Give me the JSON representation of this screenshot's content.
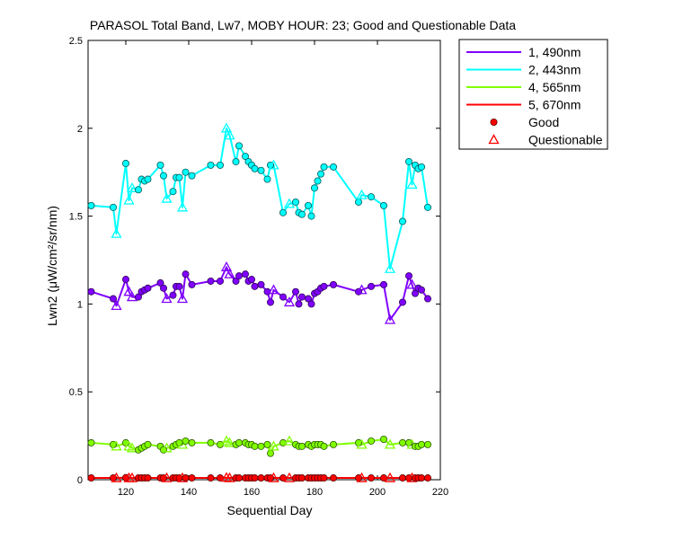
{
  "chart_data": {
    "type": "line",
    "title": "PARASOL Total Band, Lw7, MOBY HOUR: 23;  Good and Questionable Data",
    "xlabel": "Sequential Day",
    "ylabel": "Lwn2 (μW/cm²/sr/nm)",
    "xlim": [
      108,
      220
    ],
    "ylim": [
      0,
      2.5
    ],
    "xticks": [
      120,
      140,
      160,
      180,
      200,
      220
    ],
    "yticks": [
      0,
      0.5,
      1,
      1.5,
      2,
      2.5
    ],
    "ytick_labels": [
      "0",
      "0.5",
      "1",
      "1.5",
      "2",
      "2.5"
    ],
    "grid": false,
    "legend_position": "outside-top-right",
    "x": [
      109,
      116,
      117,
      120,
      121,
      122,
      124,
      125,
      126,
      127,
      131,
      132,
      133,
      135,
      136,
      137,
      138,
      139,
      141,
      147,
      150,
      152,
      153,
      155,
      156,
      158,
      159,
      160,
      161,
      163,
      165,
      166,
      167,
      170,
      172,
      174,
      175,
      176,
      178,
      179,
      180,
      181,
      182,
      183,
      186,
      194,
      195,
      198,
      202,
      204,
      208,
      210,
      211,
      212,
      213,
      214,
      216
    ],
    "series": [
      {
        "name": "1, 490nm",
        "color": "#8000FF",
        "values": [
          1.07,
          1.03,
          0.99,
          1.14,
          1.07,
          1.04,
          1.04,
          1.07,
          1.08,
          1.09,
          1.12,
          1.09,
          1.03,
          1.05,
          1.1,
          1.1,
          1.03,
          1.17,
          1.11,
          1.13,
          1.13,
          1.21,
          1.17,
          1.13,
          1.16,
          1.17,
          1.13,
          1.14,
          1.1,
          1.11,
          1.07,
          1.01,
          1.08,
          1.04,
          1.01,
          1.07,
          1.0,
          1.04,
          1.03,
          1.0,
          1.06,
          1.07,
          1.09,
          1.1,
          1.11,
          1.07,
          1.08,
          1.1,
          1.11,
          0.91,
          1.01,
          1.16,
          1.11,
          1.06,
          1.09,
          1.08,
          1.03
        ]
      },
      {
        "name": "2, 443nm",
        "color": "#00FFFF",
        "values": [
          1.56,
          1.55,
          1.4,
          1.8,
          1.59,
          1.66,
          1.65,
          1.71,
          1.7,
          1.71,
          1.79,
          1.73,
          1.6,
          1.64,
          1.72,
          1.72,
          1.55,
          1.75,
          1.73,
          1.79,
          1.79,
          2.0,
          1.96,
          1.81,
          1.9,
          1.84,
          1.81,
          1.79,
          1.77,
          1.76,
          1.71,
          1.79,
          1.79,
          1.52,
          1.57,
          1.58,
          1.52,
          1.51,
          1.56,
          1.5,
          1.66,
          1.7,
          1.74,
          1.78,
          1.78,
          1.58,
          1.62,
          1.61,
          1.56,
          1.2,
          1.47,
          1.81,
          1.68,
          1.79,
          1.77,
          1.78,
          1.55
        ]
      },
      {
        "name": "4, 565nm",
        "color": "#80FF00",
        "values": [
          0.21,
          0.2,
          0.19,
          0.21,
          0.19,
          0.18,
          0.17,
          0.18,
          0.19,
          0.2,
          0.19,
          0.17,
          0.18,
          0.19,
          0.2,
          0.21,
          0.2,
          0.22,
          0.21,
          0.21,
          0.2,
          0.22,
          0.21,
          0.2,
          0.21,
          0.21,
          0.2,
          0.2,
          0.19,
          0.19,
          0.2,
          0.15,
          0.19,
          0.21,
          0.22,
          0.2,
          0.19,
          0.19,
          0.2,
          0.19,
          0.2,
          0.2,
          0.2,
          0.19,
          0.2,
          0.21,
          0.2,
          0.22,
          0.23,
          0.2,
          0.21,
          0.21,
          0.2,
          0.19,
          0.19,
          0.2,
          0.2
        ]
      },
      {
        "name": "5, 670nm",
        "color": "#FF0000",
        "values": [
          0.01,
          0.01,
          0.01,
          0.012,
          0.01,
          0.01,
          0.01,
          0.01,
          0.01,
          0.01,
          0.01,
          0.01,
          0.01,
          0.01,
          0.01,
          0.01,
          0.01,
          0.01,
          0.01,
          0.01,
          0.01,
          0.012,
          0.01,
          0.01,
          0.01,
          0.01,
          0.01,
          0.01,
          0.01,
          0.01,
          0.01,
          0.01,
          0.01,
          0.01,
          0.01,
          0.01,
          0.01,
          0.01,
          0.01,
          0.01,
          0.01,
          0.01,
          0.01,
          0.01,
          0.01,
          0.01,
          0.01,
          0.01,
          0.01,
          0.01,
          0.01,
          0.01,
          0.01,
          0.01,
          0.01,
          0.01,
          0.01
        ]
      }
    ],
    "questionable_x": [
      117,
      121,
      122,
      133,
      138,
      152,
      153,
      167,
      172,
      195,
      204,
      211
    ],
    "legend": {
      "series_labels": [
        "1, 490nm",
        "2, 443nm",
        "4, 565nm",
        "5, 670nm"
      ],
      "marker_labels": [
        "Good",
        "Questionable"
      ]
    }
  }
}
